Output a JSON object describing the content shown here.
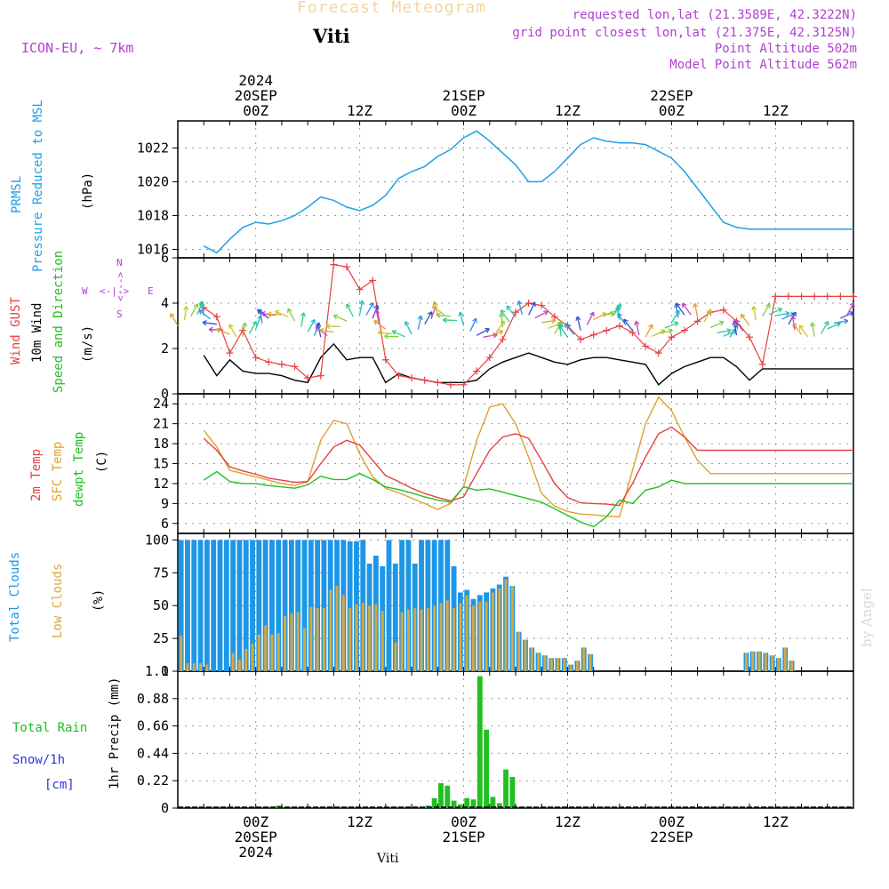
{
  "header": {
    "title": "Forecast Meteogram",
    "location": "Viti",
    "model": "ICON-EU, ~ 7km",
    "requested": "requested lon,lat (21.3589E, 42.3222N)",
    "gridpoint": "grid point closest lon,lat (21.375E, 42.3125N)",
    "point_alt": "Point Altitude 502m",
    "model_alt": "Model Point Altitude 562m"
  },
  "footer": {
    "location": "Viti",
    "credit": "by Angel"
  },
  "time_axis": {
    "top_labels": [
      {
        "h": 12,
        "lines": [
          "2024",
          "20SEP",
          "00Z"
        ]
      },
      {
        "h": 36,
        "lines": [
          "12Z"
        ]
      },
      {
        "h": 60,
        "lines": [
          "21SEP",
          "00Z"
        ]
      },
      {
        "h": 84,
        "lines": [
          "12Z"
        ]
      },
      {
        "h": 108,
        "lines": [
          "22SEP",
          "00Z"
        ]
      },
      {
        "h": 132,
        "lines": [
          "12Z"
        ]
      }
    ],
    "bottom_labels": [
      {
        "h": 12,
        "lines": [
          "00Z",
          "20SEP",
          "2024"
        ]
      },
      {
        "h": 36,
        "lines": [
          "12Z"
        ]
      },
      {
        "h": 60,
        "lines": [
          "00Z",
          "21SEP"
        ]
      },
      {
        "h": 84,
        "lines": [
          "12Z"
        ]
      },
      {
        "h": 108,
        "lines": [
          "00Z",
          "22SEP"
        ]
      },
      {
        "h": 132,
        "lines": [
          "12Z"
        ]
      }
    ]
  },
  "panel_labels": {
    "pressure": {
      "l1": "PRMSL",
      "l2": "Pressure Reduced to MSL",
      "unit": "(hPa)"
    },
    "wind": {
      "gust": "Wind GUST",
      "w10": "10m Wind",
      "speed": "Speed and Direction",
      "unit": "(m/s)",
      "compass_n": "N",
      "compass_s": "S",
      "compass_w": "W",
      "compass_e": "E",
      "compass_v": "<--->",
      "compass_h": "<-|->"
    },
    "temp": {
      "t2m": "2m Temp",
      "sfc": "SFC Temp",
      "dew": "dewpt Temp",
      "unit": "(C)"
    },
    "cloud": {
      "total": "Total Clouds",
      "low": "Low Clouds",
      "unit": "(%)"
    },
    "precip": {
      "rain": "Total  Rain",
      "snow": "Snow/1h",
      "snow_unit": "[cm]",
      "ylabel": "1hr Precip (mm)"
    }
  },
  "colors": {
    "pressure": "#1ea0e6",
    "gust": "#e84040",
    "wind10": "#000000",
    "t2m": "#e84040",
    "sfc": "#e0a030",
    "dew": "#20c020",
    "total_cloud": "#1e96e6",
    "low_cloud": "#d8a840",
    "rain": "#20c020",
    "purple": "#b040d0",
    "grid": "#9a9a9a"
  },
  "chart_data": [
    {
      "type": "line",
      "title": "PRMSL Pressure Reduced to MSL",
      "ylabel": "(hPa)",
      "x_hours": [
        0,
        3,
        6,
        9,
        12,
        15,
        18,
        21,
        24,
        27,
        30,
        33,
        36,
        39,
        42,
        45,
        48,
        51,
        54,
        57,
        60,
        63,
        66,
        69,
        72,
        75,
        78,
        81,
        84,
        87,
        90,
        93,
        96,
        99,
        102,
        105,
        108,
        111,
        114,
        117,
        120,
        123,
        126,
        129,
        132,
        135,
        138,
        141,
        144,
        147,
        150
      ],
      "ylim": [
        1015.5,
        1023.6
      ],
      "yticks": [
        1016,
        1018,
        1020,
        1022
      ],
      "series": [
        {
          "name": "PRMSL",
          "values": [
            1016.2,
            1015.8,
            1016.6,
            1017.3,
            1017.6,
            1017.5,
            1017.7,
            1018.0,
            1018.5,
            1019.1,
            1018.9,
            1018.5,
            1018.3,
            1018.6,
            1019.2,
            1020.2,
            1020.6,
            1020.9,
            1021.5,
            1021.9,
            1022.6,
            1023.0,
            1022.4,
            1021.7,
            1021.0,
            1020.0,
            1020.0,
            1020.6,
            1021.4,
            1022.2,
            1022.6,
            1022.4,
            1022.3,
            1022.3,
            1022.2,
            1021.8,
            1021.4,
            1020.6,
            1019.6,
            1018.6,
            1017.6,
            1017.3,
            1017.2,
            1017.2,
            1017.2,
            1017.2,
            1017.2,
            1017.2,
            1017.2,
            1017.2,
            1017.2
          ]
        }
      ]
    },
    {
      "type": "line",
      "title": "Wind GUST / 10m Wind Speed and Direction",
      "ylabel": "(m/s)",
      "x_hours": [
        0,
        3,
        6,
        9,
        12,
        15,
        18,
        21,
        24,
        27,
        30,
        33,
        36,
        39,
        42,
        45,
        48,
        51,
        54,
        57,
        60,
        63,
        66,
        69,
        72,
        75,
        78,
        81,
        84,
        87,
        90,
        93,
        96,
        99,
        102,
        105,
        108,
        111,
        114,
        117,
        120,
        123,
        126,
        129,
        132,
        135,
        138,
        141,
        144,
        147,
        150
      ],
      "ylim": [
        0,
        6
      ],
      "yticks": [
        0,
        2,
        4,
        6
      ],
      "series": [
        {
          "name": "Wind GUST",
          "values": [
            3.8,
            3.4,
            1.8,
            2.8,
            1.6,
            1.4,
            1.3,
            1.2,
            0.7,
            0.8,
            5.7,
            5.6,
            4.6,
            5.0,
            1.5,
            0.8,
            0.7,
            0.6,
            0.5,
            0.4,
            0.4,
            1.0,
            1.6,
            2.4,
            3.6,
            4.0,
            3.9,
            3.4,
            3.0,
            2.4,
            2.6,
            2.8,
            3.0,
            2.7,
            2.1,
            1.8,
            2.5,
            2.8,
            3.2,
            3.6,
            3.7,
            3.2,
            2.5,
            1.3,
            4.3,
            4.3,
            4.3,
            4.3,
            4.3,
            4.3,
            4.3
          ]
        },
        {
          "name": "10m Wind",
          "values": [
            1.7,
            0.8,
            1.5,
            1.0,
            0.9,
            0.9,
            0.8,
            0.6,
            0.5,
            1.6,
            2.2,
            1.5,
            1.6,
            1.6,
            0.5,
            0.9,
            0.7,
            0.6,
            0.5,
            0.5,
            0.5,
            0.6,
            1.1,
            1.4,
            1.6,
            1.8,
            1.6,
            1.4,
            1.3,
            1.5,
            1.6,
            1.6,
            1.5,
            1.4,
            1.3,
            0.4,
            0.9,
            1.2,
            1.4,
            1.6,
            1.6,
            1.2,
            0.6,
            1.1,
            1.1,
            1.1,
            1.1,
            1.1,
            1.1,
            1.1,
            1.1
          ]
        }
      ],
      "barbs_row1_y": 3.5,
      "barbs_row2_y": 2.8
    },
    {
      "type": "line",
      "title": "2m Temp / SFC Temp / dewpt Temp",
      "ylabel": "(C)",
      "x_hours": [
        0,
        3,
        6,
        9,
        12,
        15,
        18,
        21,
        24,
        27,
        30,
        33,
        36,
        39,
        42,
        45,
        48,
        51,
        54,
        57,
        60,
        63,
        66,
        69,
        72,
        75,
        78,
        81,
        84,
        87,
        90,
        93,
        96,
        99,
        102,
        105,
        108,
        111,
        114,
        117,
        120,
        123,
        126,
        129,
        132,
        135,
        138,
        141,
        144,
        147,
        150
      ],
      "ylim": [
        4.5,
        25.5
      ],
      "yticks": [
        6,
        9,
        12,
        15,
        18,
        21,
        24
      ],
      "series": [
        {
          "name": "2m Temp",
          "values": [
            18.8,
            17.0,
            14.5,
            13.9,
            13.4,
            12.8,
            12.5,
            12.2,
            12.3,
            15.0,
            17.5,
            18.5,
            17.8,
            15.5,
            13.2,
            12.3,
            11.3,
            10.5,
            9.9,
            9.4,
            10.0,
            13.5,
            17.0,
            19.0,
            19.5,
            18.8,
            15.5,
            12.0,
            9.9,
            9.1,
            9.0,
            8.9,
            8.7,
            12.0,
            16.0,
            19.5,
            20.5,
            19.0,
            17.0,
            17.0,
            17.0,
            17.0,
            17.0,
            17.0,
            17.0,
            17.0,
            17.0,
            17.0,
            17.0,
            17.0,
            17.0
          ]
        },
        {
          "name": "SFC Temp",
          "values": [
            20.0,
            17.5,
            14.0,
            13.5,
            13.0,
            12.5,
            12.0,
            11.7,
            12.3,
            18.5,
            21.5,
            21.0,
            16.5,
            13.0,
            11.3,
            10.6,
            9.8,
            9.0,
            8.1,
            9.0,
            11.5,
            18.5,
            23.5,
            24.0,
            21.0,
            16.0,
            10.5,
            8.6,
            7.8,
            7.4,
            7.3,
            7.1,
            7.0,
            14.0,
            21.0,
            25.0,
            23.0,
            19.0,
            15.5,
            13.5,
            13.5,
            13.5,
            13.5,
            13.5,
            13.5,
            13.5,
            13.5,
            13.5,
            13.5,
            13.5,
            13.5
          ]
        },
        {
          "name": "dewpt Temp",
          "values": [
            12.5,
            13.8,
            12.3,
            12.0,
            12.0,
            11.7,
            11.5,
            11.3,
            11.8,
            13.1,
            12.6,
            12.6,
            13.5,
            12.6,
            11.5,
            11.1,
            10.6,
            10.0,
            9.5,
            9.2,
            11.5,
            11.0,
            11.2,
            10.7,
            10.2,
            9.7,
            9.2,
            8.2,
            7.2,
            6.2,
            5.5,
            7.0,
            9.5,
            9.0,
            11.0,
            11.5,
            12.5,
            12.0,
            12.0,
            12.0,
            12.0,
            12.0,
            12.0,
            12.0,
            12.0,
            12.0,
            12.0,
            12.0,
            12.0,
            12.0,
            12.0
          ]
        }
      ]
    },
    {
      "type": "bar",
      "title": "Total Clouds / Low Clouds",
      "ylabel": "(%)",
      "ylim": [
        0,
        105
      ],
      "yticks": [
        0,
        25,
        50,
        75,
        100
      ],
      "series": [
        {
          "name": "Total Clouds",
          "values": [
            100,
            100,
            100,
            100,
            100,
            100,
            100,
            100,
            100,
            100,
            100,
            100,
            100,
            100,
            100,
            100,
            100,
            100,
            100,
            100,
            100,
            100,
            100,
            100,
            100,
            100,
            99,
            99,
            100,
            82,
            88,
            80,
            100,
            82,
            100,
            100,
            82,
            100,
            100,
            100,
            100,
            100,
            80,
            60,
            62,
            55,
            58,
            60,
            63,
            66,
            72,
            65,
            30,
            24,
            18,
            14,
            12,
            10,
            10,
            10,
            5,
            8,
            18,
            13,
            0,
            0,
            0,
            0,
            0,
            0,
            0,
            0,
            0,
            0,
            0,
            0,
            0,
            0,
            0,
            0,
            0,
            0,
            0,
            0,
            0,
            0,
            0,
            14,
            15,
            15,
            14,
            12,
            10,
            18,
            8,
            0,
            0
          ]
        },
        {
          "name": "Low Clouds",
          "values": [
            27,
            6,
            6,
            6,
            5,
            0,
            0,
            0,
            14,
            9,
            17,
            21,
            28,
            35,
            28,
            29,
            42,
            44,
            45,
            33,
            49,
            48,
            48,
            62,
            65,
            58,
            48,
            51,
            52,
            50,
            51,
            46,
            0,
            22,
            45,
            47,
            48,
            47,
            48,
            50,
            52,
            54,
            48,
            52,
            58,
            50,
            53,
            53,
            60,
            63,
            70,
            65,
            30,
            24,
            18,
            14,
            12,
            10,
            10,
            10,
            5,
            8,
            18,
            13,
            0,
            0,
            0,
            0,
            0,
            0,
            0,
            0,
            0,
            0,
            0,
            0,
            0,
            0,
            0,
            0,
            0,
            0,
            0,
            0,
            0,
            0,
            0,
            14,
            15,
            15,
            14,
            12,
            10,
            18,
            8,
            0,
            0
          ]
        }
      ]
    },
    {
      "type": "bar",
      "title": "1hr Precip (mm)",
      "ylabel": "1hr Precip (mm)",
      "ylim": [
        0,
        1.1
      ],
      "yticks": [
        0,
        0.22,
        0.44,
        0.66,
        0.88,
        1.1
      ],
      "series": [
        {
          "name": "Total Rain",
          "values": [
            0,
            0,
            0,
            0,
            0,
            0,
            0,
            0,
            0,
            0,
            0,
            0,
            0,
            0,
            0,
            0.02,
            0,
            0,
            0,
            0,
            0,
            0,
            0,
            0,
            0,
            0,
            0,
            0,
            0,
            0,
            0,
            0,
            0,
            0,
            0,
            0,
            0,
            0,
            0.02,
            0.08,
            0.2,
            0.18,
            0.06,
            0.03,
            0.08,
            0.07,
            1.06,
            0.63,
            0.09,
            0.04,
            0.31,
            0.25,
            0,
            0,
            0,
            0,
            0,
            0,
            0,
            0,
            0,
            0,
            0,
            0,
            0,
            0,
            0,
            0,
            0,
            0,
            0,
            0,
            0,
            0,
            0,
            0,
            0,
            0,
            0,
            0,
            0,
            0,
            0,
            0,
            0,
            0,
            0,
            0,
            0,
            0,
            0,
            0,
            0,
            0,
            0,
            0,
            0,
            0,
            0
          ]
        }
      ]
    }
  ]
}
